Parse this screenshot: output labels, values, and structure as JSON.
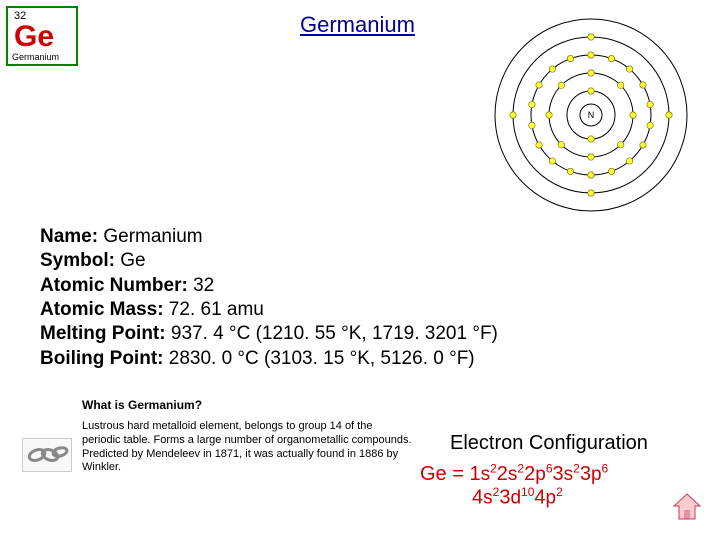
{
  "element": {
    "atomic_number": "32",
    "symbol": "Ge",
    "name_small": "Germanium"
  },
  "title": "Germanium",
  "bohr": {
    "nucleus_label": "N",
    "shell_radii": [
      24,
      42,
      60,
      78,
      96
    ],
    "electron_counts": [
      2,
      8,
      18,
      4,
      0
    ],
    "shell_stroke": "#000000",
    "electron_fill": "#ffff33",
    "electron_stroke": "#666600",
    "nucleus_fill": "#ffffff",
    "nucleus_stroke": "#000000"
  },
  "facts": {
    "name_label": "Name:",
    "name_value": " Germanium",
    "symbol_label": "Symbol:",
    "symbol_value": " Ge",
    "an_label": "Atomic Number:",
    "an_value": " 32",
    "am_label": "Atomic Mass:",
    "am_value": " 72. 61 amu",
    "mp_label": "Melting Point:",
    "mp_value": " 937. 4 °C (1210. 55 °K, 1719. 3201 °F)",
    "bp_label": "Boiling Point:",
    "bp_value": " 2830. 0 °C (3103. 15 °K, 5126. 0 °F)"
  },
  "whatis_heading": "What is Germanium?",
  "description": "Lustrous hard metalloid element, belongs to group 14 of the periodic table. Forms a large number of organometallic compounds. Predicted by Mendeleev in 1871, it was actually found in 1886 by Winkler.",
  "ec": {
    "title": "Electron Configuration",
    "prefix": "Ge = ",
    "orbitals": [
      {
        "shell": "1",
        "sub": "s",
        "e": "2"
      },
      {
        "shell": "2",
        "sub": "s",
        "e": "2"
      },
      {
        "shell": "2",
        "sub": "p",
        "e": "6"
      },
      {
        "shell": "3",
        "sub": "s",
        "e": "2"
      },
      {
        "shell": "3",
        "sub": "p",
        "e": "6"
      }
    ],
    "orbitals2": [
      {
        "shell": "4",
        "sub": "s",
        "e": "2"
      },
      {
        "shell": "3",
        "sub": "d",
        "e": "10"
      },
      {
        "shell": "4",
        "sub": "p",
        "e": "2"
      }
    ]
  },
  "colors": {
    "tile_border": "#008000",
    "symbol_color": "#cc0000",
    "title_color": "#000099",
    "ec_color": "#cc0000",
    "home_fill": "#ffcccc",
    "home_stroke": "#cc3366"
  }
}
